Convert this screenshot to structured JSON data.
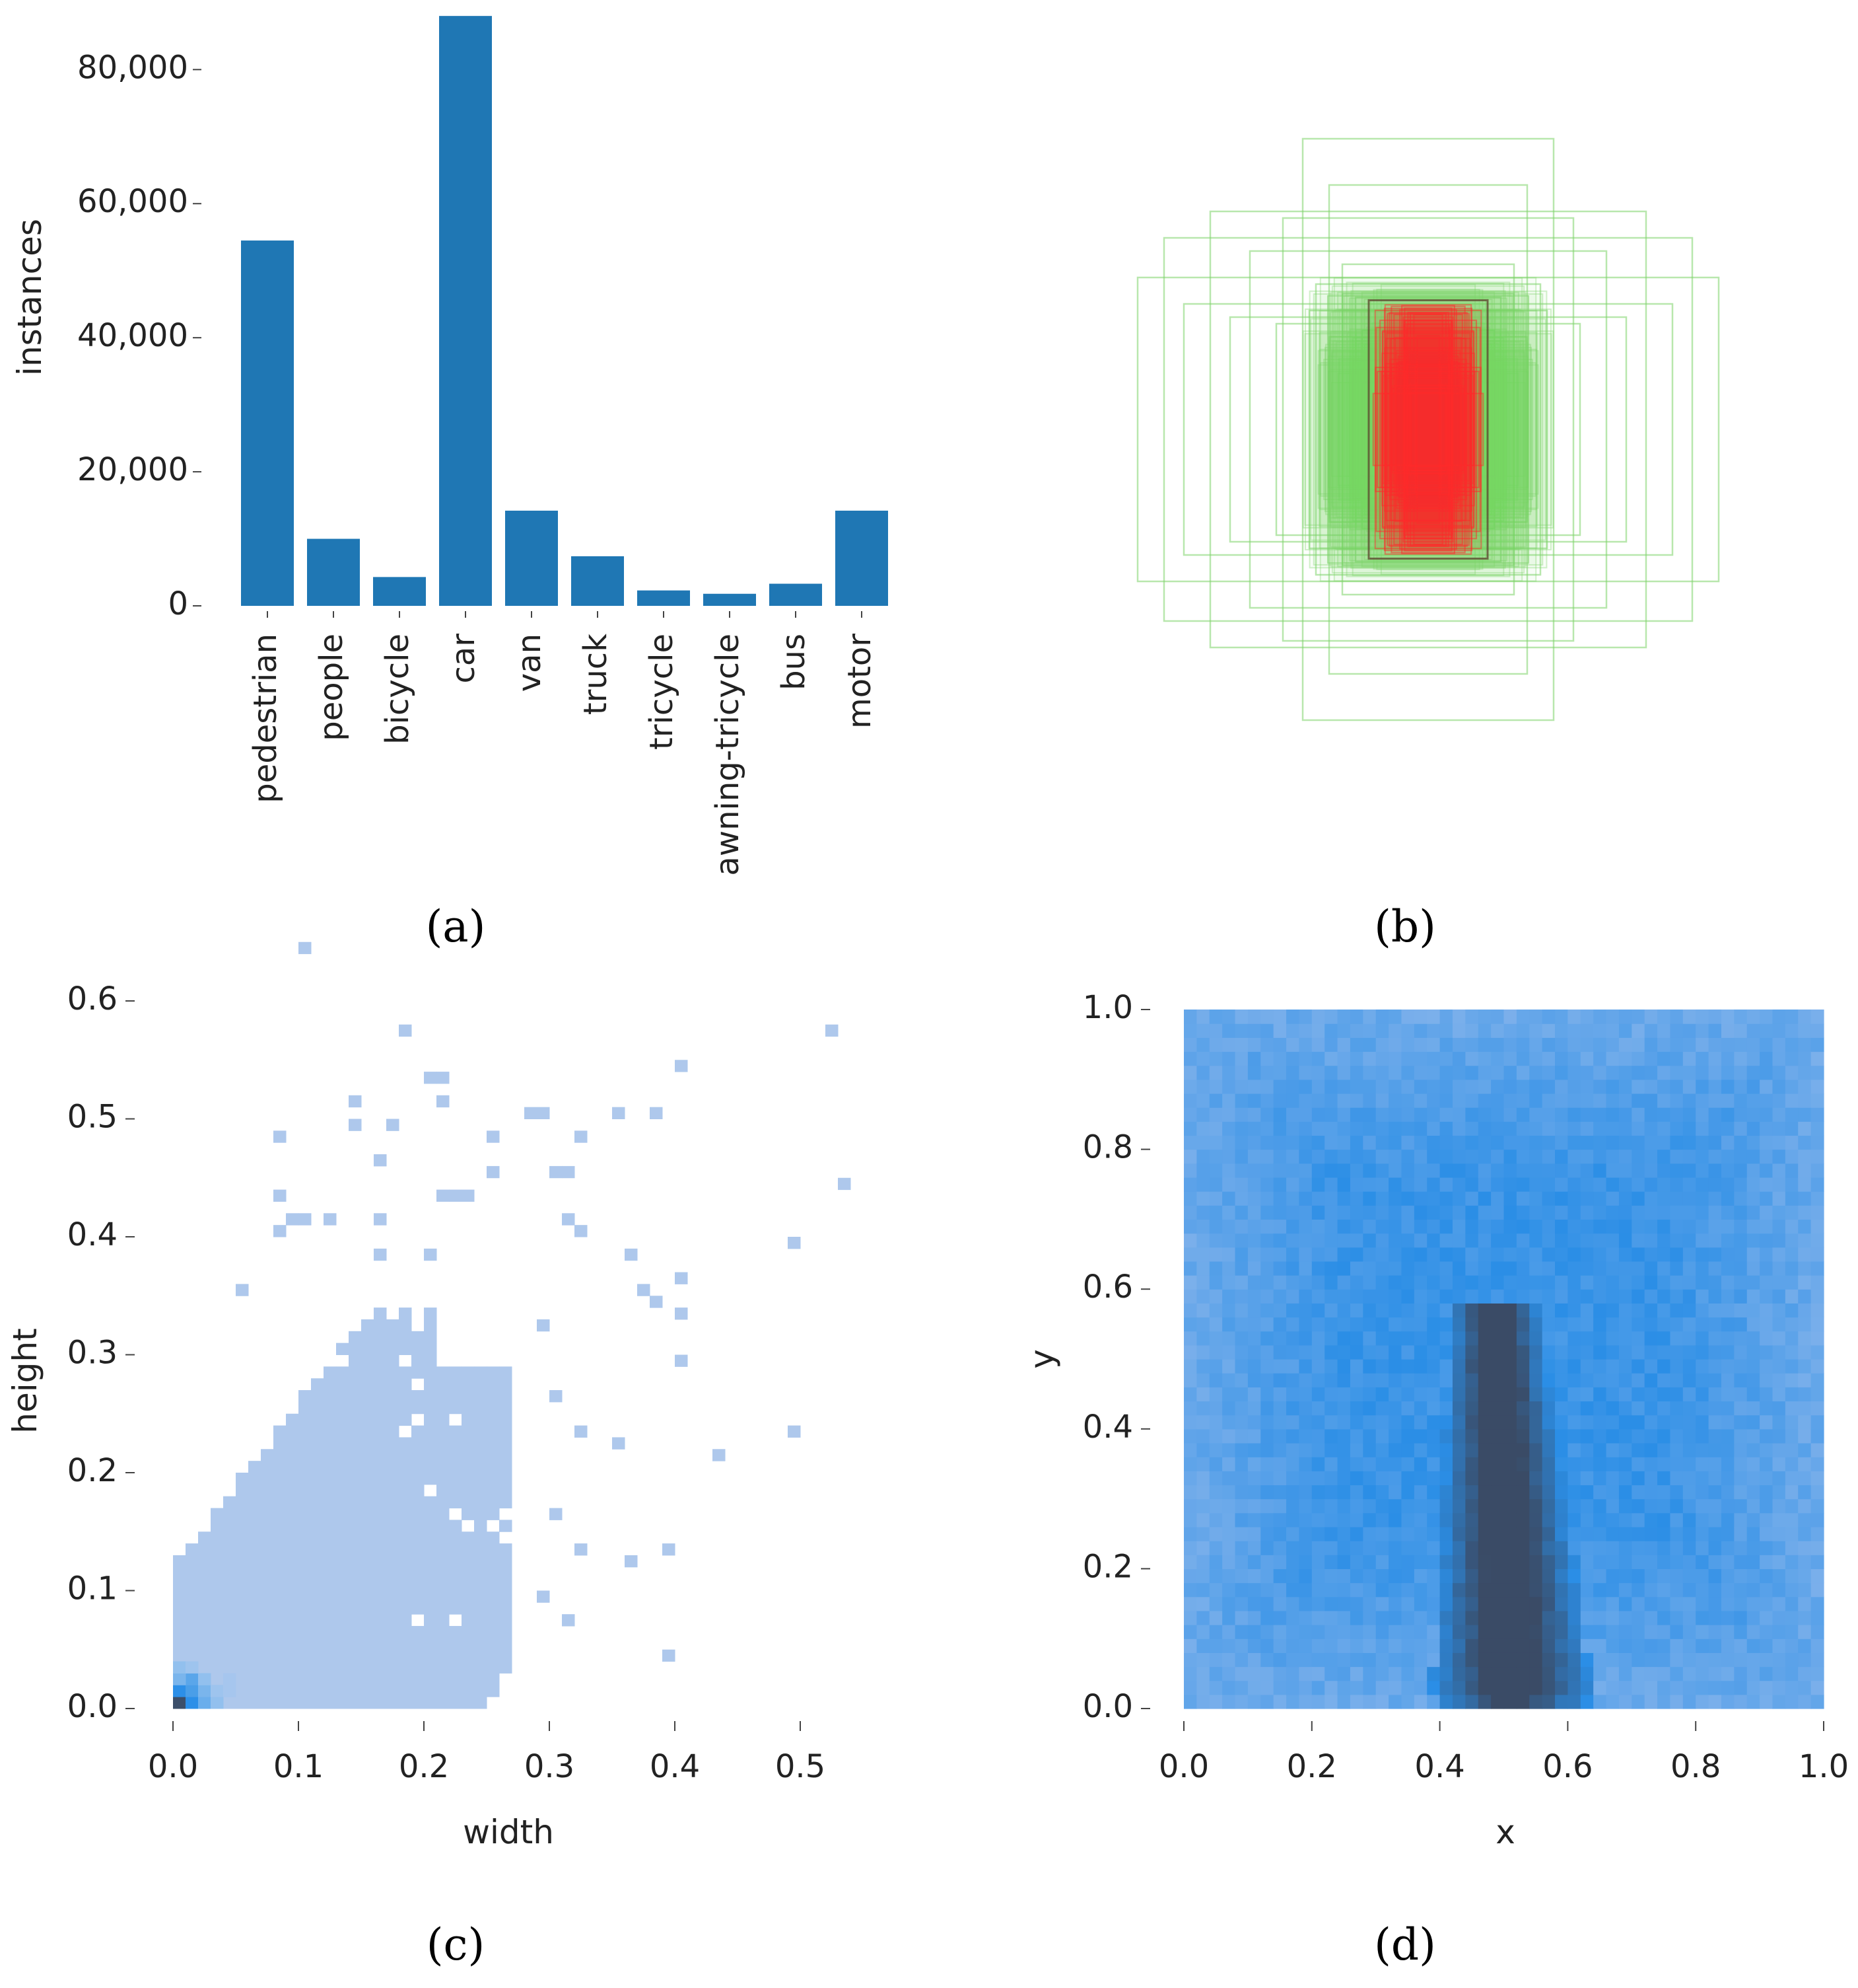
{
  "colors": {
    "bar": "#1f77b4",
    "heat_light": "#aec8ec",
    "heat_mid": "#2c8fe8",
    "heat_dark": "#3c4f6a",
    "box_green": "#7ed46a",
    "box_red": "#ff2a2a",
    "box_outline": "#5a3a2a"
  },
  "panels": {
    "a": "(a)",
    "b": "(b)",
    "c": "(c)",
    "d": "(d)"
  },
  "chart_data": [
    {
      "id": "a",
      "type": "bar",
      "title": "",
      "xlabel": "",
      "ylabel": "instances",
      "categories": [
        "pedestrian",
        "people",
        "bicycle",
        "car",
        "van",
        "truck",
        "tricycle",
        "awning-tricycle",
        "bus",
        "motor"
      ],
      "values": [
        54500,
        10000,
        4300,
        88000,
        14200,
        7400,
        2300,
        1800,
        3300,
        14200
      ],
      "ylim": [
        0,
        89000
      ],
      "yticks": [
        0,
        20000,
        40000,
        60000,
        80000
      ],
      "ytick_labels": [
        "0",
        "20,000",
        "40,000",
        "60,000",
        "80,000"
      ],
      "grid": false
    },
    {
      "id": "b",
      "type": "boxes",
      "title": "",
      "description_units": "normalized box width/height, centered",
      "boxes": [
        {
          "w": 0.38,
          "h": 0.88
        },
        {
          "w": 0.3,
          "h": 0.74
        },
        {
          "w": 0.8,
          "h": 0.58
        },
        {
          "w": 0.66,
          "h": 0.66
        },
        {
          "w": 0.88,
          "h": 0.46
        },
        {
          "w": 0.74,
          "h": 0.38
        },
        {
          "w": 0.54,
          "h": 0.54
        },
        {
          "w": 0.44,
          "h": 0.64
        },
        {
          "w": 0.6,
          "h": 0.34
        },
        {
          "w": 0.34,
          "h": 0.44
        },
        {
          "w": 0.26,
          "h": 0.5
        },
        {
          "w": 0.46,
          "h": 0.32
        },
        {
          "w": 0.22,
          "h": 0.4
        },
        {
          "w": 0.36,
          "h": 0.36
        },
        {
          "w": 0.3,
          "h": 0.28
        },
        {
          "w": 0.2,
          "h": 0.3
        }
      ],
      "core_box": {
        "w": 0.2,
        "h": 0.34
      }
    },
    {
      "id": "c",
      "type": "heatmap",
      "title": "",
      "xlabel": "width",
      "ylabel": "height",
      "xlim": [
        0,
        0.55
      ],
      "ylim": [
        0,
        0.66
      ],
      "xticks": [
        0.0,
        0.1,
        0.2,
        0.3,
        0.4,
        0.5
      ],
      "xtick_labels": [
        "0.0",
        "0.1",
        "0.2",
        "0.3",
        "0.4",
        "0.5"
      ],
      "yticks": [
        0.0,
        0.1,
        0.2,
        0.3,
        0.4,
        0.5,
        0.6
      ],
      "ytick_labels": [
        "0.0",
        "0.1",
        "0.2",
        "0.3",
        "0.4",
        "0.5",
        "0.6"
      ],
      "bin_size": 0.01,
      "dense_region": {
        "w_max": 0.27,
        "h_max": 0.34
      },
      "scatter_bins": [
        [
          0.1,
          0.64
        ],
        [
          0.18,
          0.57
        ],
        [
          0.52,
          0.57
        ],
        [
          0.4,
          0.54
        ],
        [
          0.2,
          0.53
        ],
        [
          0.21,
          0.53
        ],
        [
          0.14,
          0.51
        ],
        [
          0.21,
          0.51
        ],
        [
          0.28,
          0.5
        ],
        [
          0.29,
          0.5
        ],
        [
          0.35,
          0.5
        ],
        [
          0.38,
          0.5
        ],
        [
          0.14,
          0.49
        ],
        [
          0.17,
          0.49
        ],
        [
          0.08,
          0.48
        ],
        [
          0.25,
          0.48
        ],
        [
          0.32,
          0.48
        ],
        [
          0.16,
          0.46
        ],
        [
          0.25,
          0.45
        ],
        [
          0.3,
          0.45
        ],
        [
          0.31,
          0.45
        ],
        [
          0.53,
          0.44
        ],
        [
          0.08,
          0.43
        ],
        [
          0.21,
          0.43
        ],
        [
          0.22,
          0.43
        ],
        [
          0.23,
          0.43
        ],
        [
          0.09,
          0.41
        ],
        [
          0.1,
          0.41
        ],
        [
          0.12,
          0.41
        ],
        [
          0.16,
          0.41
        ],
        [
          0.31,
          0.41
        ],
        [
          0.08,
          0.4
        ],
        [
          0.32,
          0.4
        ],
        [
          0.49,
          0.39
        ],
        [
          0.16,
          0.38
        ],
        [
          0.2,
          0.38
        ],
        [
          0.36,
          0.38
        ],
        [
          0.4,
          0.36
        ],
        [
          0.05,
          0.35
        ],
        [
          0.37,
          0.35
        ],
        [
          0.38,
          0.34
        ],
        [
          0.4,
          0.33
        ],
        [
          0.29,
          0.32
        ],
        [
          0.4,
          0.29
        ],
        [
          0.3,
          0.26
        ],
        [
          0.32,
          0.23
        ],
        [
          0.35,
          0.22
        ],
        [
          0.43,
          0.21
        ],
        [
          0.49,
          0.23
        ],
        [
          0.3,
          0.16
        ],
        [
          0.32,
          0.13
        ],
        [
          0.39,
          0.13
        ],
        [
          0.36,
          0.12
        ],
        [
          0.29,
          0.09
        ],
        [
          0.31,
          0.07
        ],
        [
          0.39,
          0.04
        ],
        [
          0.2,
          0.02
        ]
      ],
      "peak_bin": [
        0.01,
        0.02
      ]
    },
    {
      "id": "d",
      "type": "heatmap",
      "title": "",
      "xlabel": "x",
      "ylabel": "y",
      "xlim": [
        0,
        1
      ],
      "ylim": [
        0,
        1
      ],
      "xticks": [
        0.0,
        0.2,
        0.4,
        0.6,
        0.8,
        1.0
      ],
      "xtick_labels": [
        "0.0",
        "0.2",
        "0.4",
        "0.6",
        "0.8",
        "1.0"
      ],
      "yticks": [
        0.0,
        0.2,
        0.4,
        0.6,
        0.8,
        1.0
      ],
      "ytick_labels": [
        "0.0",
        "0.2",
        "0.4",
        "0.6",
        "0.8",
        "1.0"
      ],
      "bins": 50,
      "dense_center": {
        "x": 0.5,
        "y": 0.3
      }
    }
  ]
}
